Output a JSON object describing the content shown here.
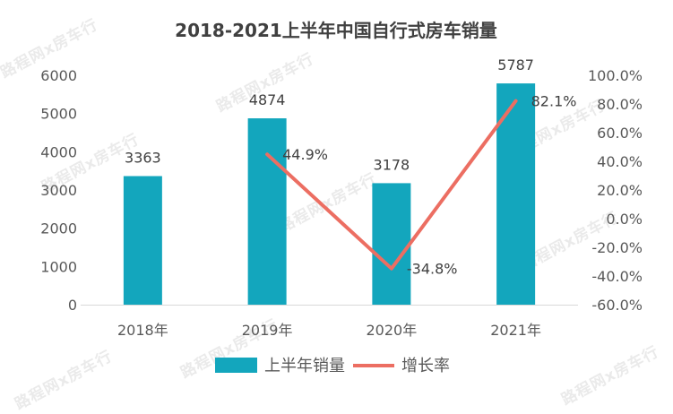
{
  "chart_data": {
    "type": "bar",
    "title": "2018-2021上半年中国自行式房车销量",
    "categories": [
      "2018年",
      "2019年",
      "2020年",
      "2021年"
    ],
    "series": [
      {
        "name": "上半年销量",
        "type": "bar",
        "axis": "left",
        "color": "#13a6bd",
        "values": [
          3363,
          4874,
          3178,
          5787
        ],
        "labels": [
          "3363",
          "4874",
          "3178",
          "5787"
        ]
      },
      {
        "name": "增长率",
        "type": "line",
        "axis": "right",
        "color": "#ec6e62",
        "values": [
          null,
          44.9,
          -34.8,
          82.1
        ],
        "labels": [
          "",
          "44.9%",
          "-34.8%",
          "82.1%"
        ]
      }
    ],
    "y_left": {
      "min": 0,
      "max": 6000,
      "ticks": [
        "0",
        "1000",
        "2000",
        "3000",
        "4000",
        "5000",
        "6000"
      ]
    },
    "y_right": {
      "min": -60,
      "max": 100,
      "ticks": [
        "-60.0%",
        "-40.0%",
        "-20.0%",
        "0.0%",
        "20.0%",
        "40.0%",
        "60.0%",
        "80.0%",
        "100.0%"
      ]
    },
    "grid": false,
    "legend_position": "bottom"
  },
  "watermark": "路程网x房车行"
}
